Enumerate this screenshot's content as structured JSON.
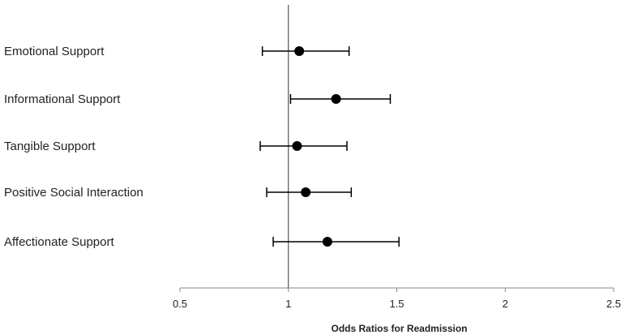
{
  "chart_data": {
    "type": "scatter",
    "subtype": "forest-plot",
    "title": "",
    "xlabel": "Odds Ratios for Readmission",
    "ylabel": "",
    "xlim": [
      0.5,
      2.5
    ],
    "xticks": [
      "0.5",
      "1",
      "1.5",
      "2",
      "2.5"
    ],
    "reference_line": 1,
    "grid": false,
    "legend": "none",
    "categories": [
      "Emotional Support",
      "Informational Support",
      "Tangible Support",
      "Positive Social Interaction",
      "Affectionate Support"
    ],
    "estimates": [
      1.05,
      1.22,
      1.04,
      1.08,
      1.18
    ],
    "ci_lower": [
      0.88,
      1.01,
      0.87,
      0.9,
      0.93
    ],
    "ci_upper": [
      1.28,
      1.47,
      1.27,
      1.29,
      1.51
    ],
    "colors": {
      "marker": "#000000",
      "axis": "#888888",
      "text": "#222222"
    }
  }
}
